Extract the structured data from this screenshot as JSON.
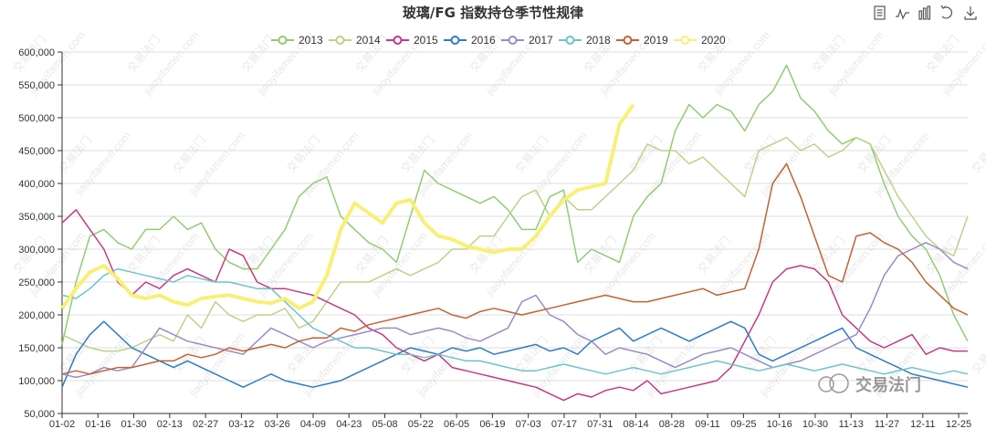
{
  "chart_data": {
    "type": "line",
    "title": "玻璃/FG 指数持仓季节性规律",
    "x_tick_labels": [
      "01-02",
      "01-16",
      "01-30",
      "02-13",
      "02-27",
      "03-12",
      "03-26",
      "04-09",
      "04-23",
      "05-08",
      "05-22",
      "06-05",
      "06-19",
      "07-03",
      "07-17",
      "07-31",
      "08-14",
      "08-28",
      "09-11",
      "09-25",
      "10-16",
      "10-30",
      "11-13",
      "11-27",
      "12-11",
      "12-25"
    ],
    "y_tick_labels": [
      "50,000",
      "100,000",
      "150,000",
      "200,000",
      "250,000",
      "300,000",
      "350,000",
      "400,000",
      "450,000",
      "500,000",
      "550,000",
      "600,000"
    ],
    "ylim": [
      50000,
      600000
    ],
    "xlabel": "",
    "ylabel": "",
    "series": [
      {
        "name": "2013",
        "color": "#91cc75",
        "values": [
          155000,
          250000,
          320000,
          330000,
          310000,
          300000,
          330000,
          330000,
          350000,
          330000,
          340000,
          300000,
          280000,
          270000,
          270000,
          300000,
          330000,
          380000,
          400000,
          410000,
          350000,
          330000,
          310000,
          300000,
          280000,
          350000,
          420000,
          400000,
          390000,
          380000,
          370000,
          380000,
          360000,
          330000,
          330000,
          380000,
          390000,
          280000,
          300000,
          290000,
          280000,
          350000,
          380000,
          400000,
          480000,
          520000,
          500000,
          520000,
          510000,
          480000,
          520000,
          540000,
          580000,
          530000,
          510000,
          480000,
          460000,
          470000,
          460000,
          400000,
          350000,
          320000,
          300000,
          260000,
          200000,
          160000
        ]
      },
      {
        "name": "2014",
        "color": "#bdd28b",
        "values": [
          170000,
          160000,
          150000,
          145000,
          145000,
          150000,
          160000,
          170000,
          160000,
          200000,
          180000,
          220000,
          200000,
          190000,
          200000,
          200000,
          210000,
          180000,
          190000,
          220000,
          250000,
          250000,
          250000,
          260000,
          270000,
          260000,
          270000,
          280000,
          300000,
          300000,
          320000,
          320000,
          350000,
          380000,
          390000,
          350000,
          380000,
          360000,
          360000,
          380000,
          400000,
          420000,
          460000,
          450000,
          450000,
          430000,
          440000,
          420000,
          400000,
          380000,
          450000,
          460000,
          470000,
          450000,
          460000,
          440000,
          450000,
          470000,
          460000,
          420000,
          380000,
          350000,
          320000,
          300000,
          290000,
          350000
        ]
      },
      {
        "name": "2015",
        "color": "#c23a82",
        "values": [
          340000,
          360000,
          330000,
          300000,
          250000,
          230000,
          250000,
          240000,
          260000,
          270000,
          260000,
          250000,
          300000,
          290000,
          250000,
          240000,
          240000,
          235000,
          230000,
          220000,
          210000,
          200000,
          180000,
          170000,
          150000,
          140000,
          130000,
          140000,
          120000,
          115000,
          110000,
          105000,
          100000,
          95000,
          90000,
          80000,
          70000,
          80000,
          75000,
          85000,
          90000,
          85000,
          100000,
          80000,
          85000,
          90000,
          95000,
          100000,
          120000,
          160000,
          200000,
          250000,
          270000,
          275000,
          270000,
          250000,
          200000,
          180000,
          160000,
          150000,
          160000,
          170000,
          140000,
          150000,
          145000,
          145000
        ]
      },
      {
        "name": "2016",
        "color": "#2f7cc0",
        "values": [
          90000,
          140000,
          170000,
          190000,
          170000,
          150000,
          140000,
          130000,
          120000,
          130000,
          120000,
          110000,
          100000,
          90000,
          100000,
          110000,
          100000,
          95000,
          90000,
          95000,
          100000,
          110000,
          120000,
          130000,
          140000,
          150000,
          145000,
          140000,
          150000,
          145000,
          150000,
          140000,
          145000,
          150000,
          155000,
          145000,
          150000,
          140000,
          160000,
          170000,
          180000,
          160000,
          170000,
          180000,
          170000,
          160000,
          170000,
          180000,
          190000,
          180000,
          140000,
          130000,
          140000,
          150000,
          160000,
          170000,
          180000,
          150000,
          140000,
          130000,
          120000,
          110000,
          105000,
          100000,
          95000,
          90000
        ]
      },
      {
        "name": "2017",
        "color": "#9a8bc6",
        "values": [
          110000,
          105000,
          110000,
          120000,
          115000,
          120000,
          150000,
          180000,
          170000,
          160000,
          155000,
          150000,
          145000,
          140000,
          160000,
          180000,
          170000,
          160000,
          150000,
          160000,
          165000,
          170000,
          175000,
          180000,
          180000,
          170000,
          175000,
          180000,
          175000,
          165000,
          160000,
          170000,
          180000,
          220000,
          230000,
          200000,
          190000,
          170000,
          160000,
          140000,
          150000,
          145000,
          140000,
          130000,
          120000,
          130000,
          140000,
          145000,
          150000,
          140000,
          130000,
          120000,
          125000,
          130000,
          140000,
          150000,
          160000,
          170000,
          210000,
          260000,
          290000,
          300000,
          310000,
          300000,
          280000,
          270000
        ]
      },
      {
        "name": "2018",
        "color": "#6fc3c8",
        "values": [
          230000,
          225000,
          240000,
          260000,
          270000,
          265000,
          260000,
          255000,
          250000,
          260000,
          255000,
          250000,
          250000,
          245000,
          240000,
          240000,
          220000,
          200000,
          180000,
          170000,
          160000,
          150000,
          150000,
          145000,
          140000,
          140000,
          135000,
          140000,
          135000,
          130000,
          130000,
          125000,
          120000,
          115000,
          115000,
          120000,
          125000,
          120000,
          115000,
          110000,
          115000,
          120000,
          115000,
          110000,
          115000,
          120000,
          125000,
          130000,
          125000,
          120000,
          115000,
          120000,
          125000,
          120000,
          115000,
          120000,
          125000,
          120000,
          115000,
          110000,
          115000,
          120000,
          115000,
          110000,
          115000,
          110000
        ]
      },
      {
        "name": "2019",
        "color": "#c06235",
        "values": [
          110000,
          115000,
          110000,
          115000,
          120000,
          120000,
          125000,
          130000,
          130000,
          140000,
          135000,
          140000,
          150000,
          145000,
          150000,
          155000,
          150000,
          160000,
          165000,
          165000,
          180000,
          175000,
          185000,
          190000,
          195000,
          200000,
          205000,
          210000,
          200000,
          195000,
          205000,
          210000,
          205000,
          200000,
          205000,
          210000,
          215000,
          220000,
          225000,
          230000,
          225000,
          220000,
          220000,
          225000,
          230000,
          235000,
          240000,
          230000,
          235000,
          240000,
          300000,
          400000,
          430000,
          380000,
          320000,
          260000,
          250000,
          320000,
          325000,
          310000,
          300000,
          280000,
          250000,
          230000,
          210000,
          200000
        ]
      },
      {
        "name": "2020",
        "color": "#f8f075",
        "values": [
          210000,
          240000,
          265000,
          275000,
          255000,
          230000,
          225000,
          230000,
          220000,
          215000,
          225000,
          228000,
          230000,
          225000,
          220000,
          218000,
          225000,
          210000,
          220000,
          260000,
          330000,
          370000,
          355000,
          340000,
          370000,
          375000,
          340000,
          320000,
          315000,
          305000,
          300000,
          295000,
          300000,
          300000,
          320000,
          350000,
          375000,
          390000,
          395000,
          400000,
          490000,
          520000
        ]
      }
    ],
    "series_point_counts": [
      66,
      66,
      66,
      66,
      66,
      66,
      66,
      42
    ],
    "watermark_text": "交易法门",
    "watermark_subtext": "jiaoyifamen.com",
    "logo_text": "交易法门"
  }
}
